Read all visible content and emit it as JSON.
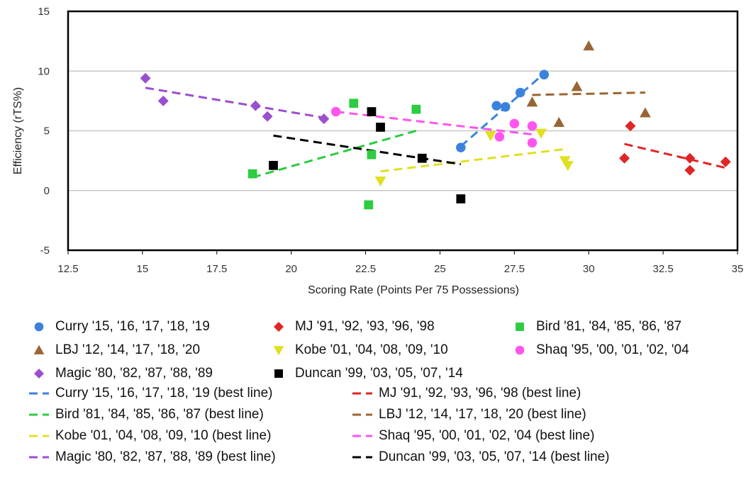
{
  "chart_data": {
    "type": "scatter",
    "xlabel": "Scoring Rate (Points Per 75 Possessions)",
    "ylabel": "Efficiency (rTS%)",
    "xlim": [
      12.5,
      35
    ],
    "ylim": [
      -5,
      15
    ],
    "xticks": [
      "12.5",
      "15",
      "17.5",
      "20",
      "22.5",
      "25",
      "27.5",
      "30",
      "32.5",
      "35"
    ],
    "yticks": [
      "-5",
      "0",
      "5",
      "10",
      "15"
    ],
    "grid": "horizontal",
    "legend_position": "bottom",
    "series": [
      {
        "name": "Curry '15, '16, '17, '18, '19",
        "marker": "circle",
        "color": "#3b82dd",
        "points": [
          [
            25.7,
            3.6
          ],
          [
            26.9,
            7.1
          ],
          [
            27.2,
            7.0
          ],
          [
            27.7,
            8.2
          ],
          [
            28.5,
            9.7
          ]
        ]
      },
      {
        "name": "MJ '91, '92, '93, '96, '98",
        "marker": "diamond",
        "color": "#e02525",
        "points": [
          [
            31.2,
            2.7
          ],
          [
            31.4,
            5.4
          ],
          [
            33.4,
            2.7
          ],
          [
            33.4,
            1.7
          ],
          [
            34.6,
            2.4
          ]
        ]
      },
      {
        "name": "Bird '81, '84, '85, '86, '87",
        "marker": "square",
        "color": "#2ecc40",
        "points": [
          [
            18.7,
            1.4
          ],
          [
            22.1,
            7.3
          ],
          [
            22.6,
            -1.2
          ],
          [
            22.7,
            3.0
          ],
          [
            24.2,
            6.8
          ]
        ]
      },
      {
        "name": "LBJ '12, '14, '17, '18, '20",
        "marker": "triangle-up",
        "color": "#996633",
        "points": [
          [
            28.1,
            7.4
          ],
          [
            29.0,
            5.7
          ],
          [
            29.6,
            8.7
          ],
          [
            30.0,
            12.1
          ],
          [
            31.9,
            6.5
          ]
        ]
      },
      {
        "name": "Kobe '01, '04, '08, '09, '10",
        "marker": "triangle-down",
        "color": "#e0e020",
        "points": [
          [
            23.0,
            0.8
          ],
          [
            26.7,
            4.6
          ],
          [
            28.4,
            4.8
          ],
          [
            29.2,
            2.5
          ],
          [
            29.3,
            2.1
          ]
        ]
      },
      {
        "name": "Shaq '95, '00, '01, '02, '04",
        "marker": "circle",
        "color": "#ff55ee",
        "points": [
          [
            21.5,
            6.6
          ],
          [
            27.0,
            4.5
          ],
          [
            27.5,
            5.6
          ],
          [
            28.1,
            5.4
          ],
          [
            28.1,
            4.0
          ]
        ]
      },
      {
        "name": "Magic '80, '82, '87, '88, '89",
        "marker": "diamond",
        "color": "#9b4fd0",
        "points": [
          [
            15.1,
            9.4
          ],
          [
            15.7,
            7.5
          ],
          [
            18.8,
            7.1
          ],
          [
            19.2,
            6.2
          ],
          [
            21.1,
            6.0
          ]
        ]
      },
      {
        "name": "Duncan '99, '03, '05, '07, '14",
        "marker": "square",
        "color": "#000000",
        "points": [
          [
            19.4,
            2.1
          ],
          [
            22.7,
            6.6
          ],
          [
            23.0,
            5.3
          ],
          [
            24.4,
            2.7
          ],
          [
            25.7,
            -0.7
          ]
        ]
      }
    ],
    "best_lines": [
      {
        "name": "Curry '15, '16, '17, '18, '19 (best line)",
        "color": "#3b82dd",
        "x": [
          25.7,
          28.5
        ],
        "y": [
          3.7,
          9.8
        ]
      },
      {
        "name": "MJ '91, '92, '93, '96, '98 (best line)",
        "color": "#e02525",
        "x": [
          31.2,
          34.6
        ],
        "y": [
          3.9,
          1.9
        ]
      },
      {
        "name": "Bird '81, '84, '85, '86, '87 (best line)",
        "color": "#2ecc40",
        "x": [
          18.7,
          24.2
        ],
        "y": [
          1.1,
          5.0
        ]
      },
      {
        "name": "LBJ '12, '14, '17, '18, '20 (best line)",
        "color": "#996633",
        "x": [
          28.1,
          31.9
        ],
        "y": [
          8.0,
          8.2
        ]
      },
      {
        "name": "Kobe '01, '04, '08, '09, '10 (best line)",
        "color": "#e0e020",
        "x": [
          23.0,
          29.3
        ],
        "y": [
          1.6,
          3.5
        ]
      },
      {
        "name": "Shaq '95, '00, '01, '02, '04 (best line)",
        "color": "#ff55ee",
        "x": [
          21.5,
          28.1
        ],
        "y": [
          6.6,
          4.7
        ]
      },
      {
        "name": "Magic '80, '82, '87, '88, '89 (best line)",
        "color": "#9b4fd0",
        "x": [
          15.1,
          21.1
        ],
        "y": [
          8.6,
          6.1
        ]
      },
      {
        "name": "Duncan '99, '03, '05, '07, '14 (best line)",
        "color": "#000000",
        "x": [
          19.4,
          25.7
        ],
        "y": [
          4.6,
          2.2
        ]
      }
    ]
  }
}
